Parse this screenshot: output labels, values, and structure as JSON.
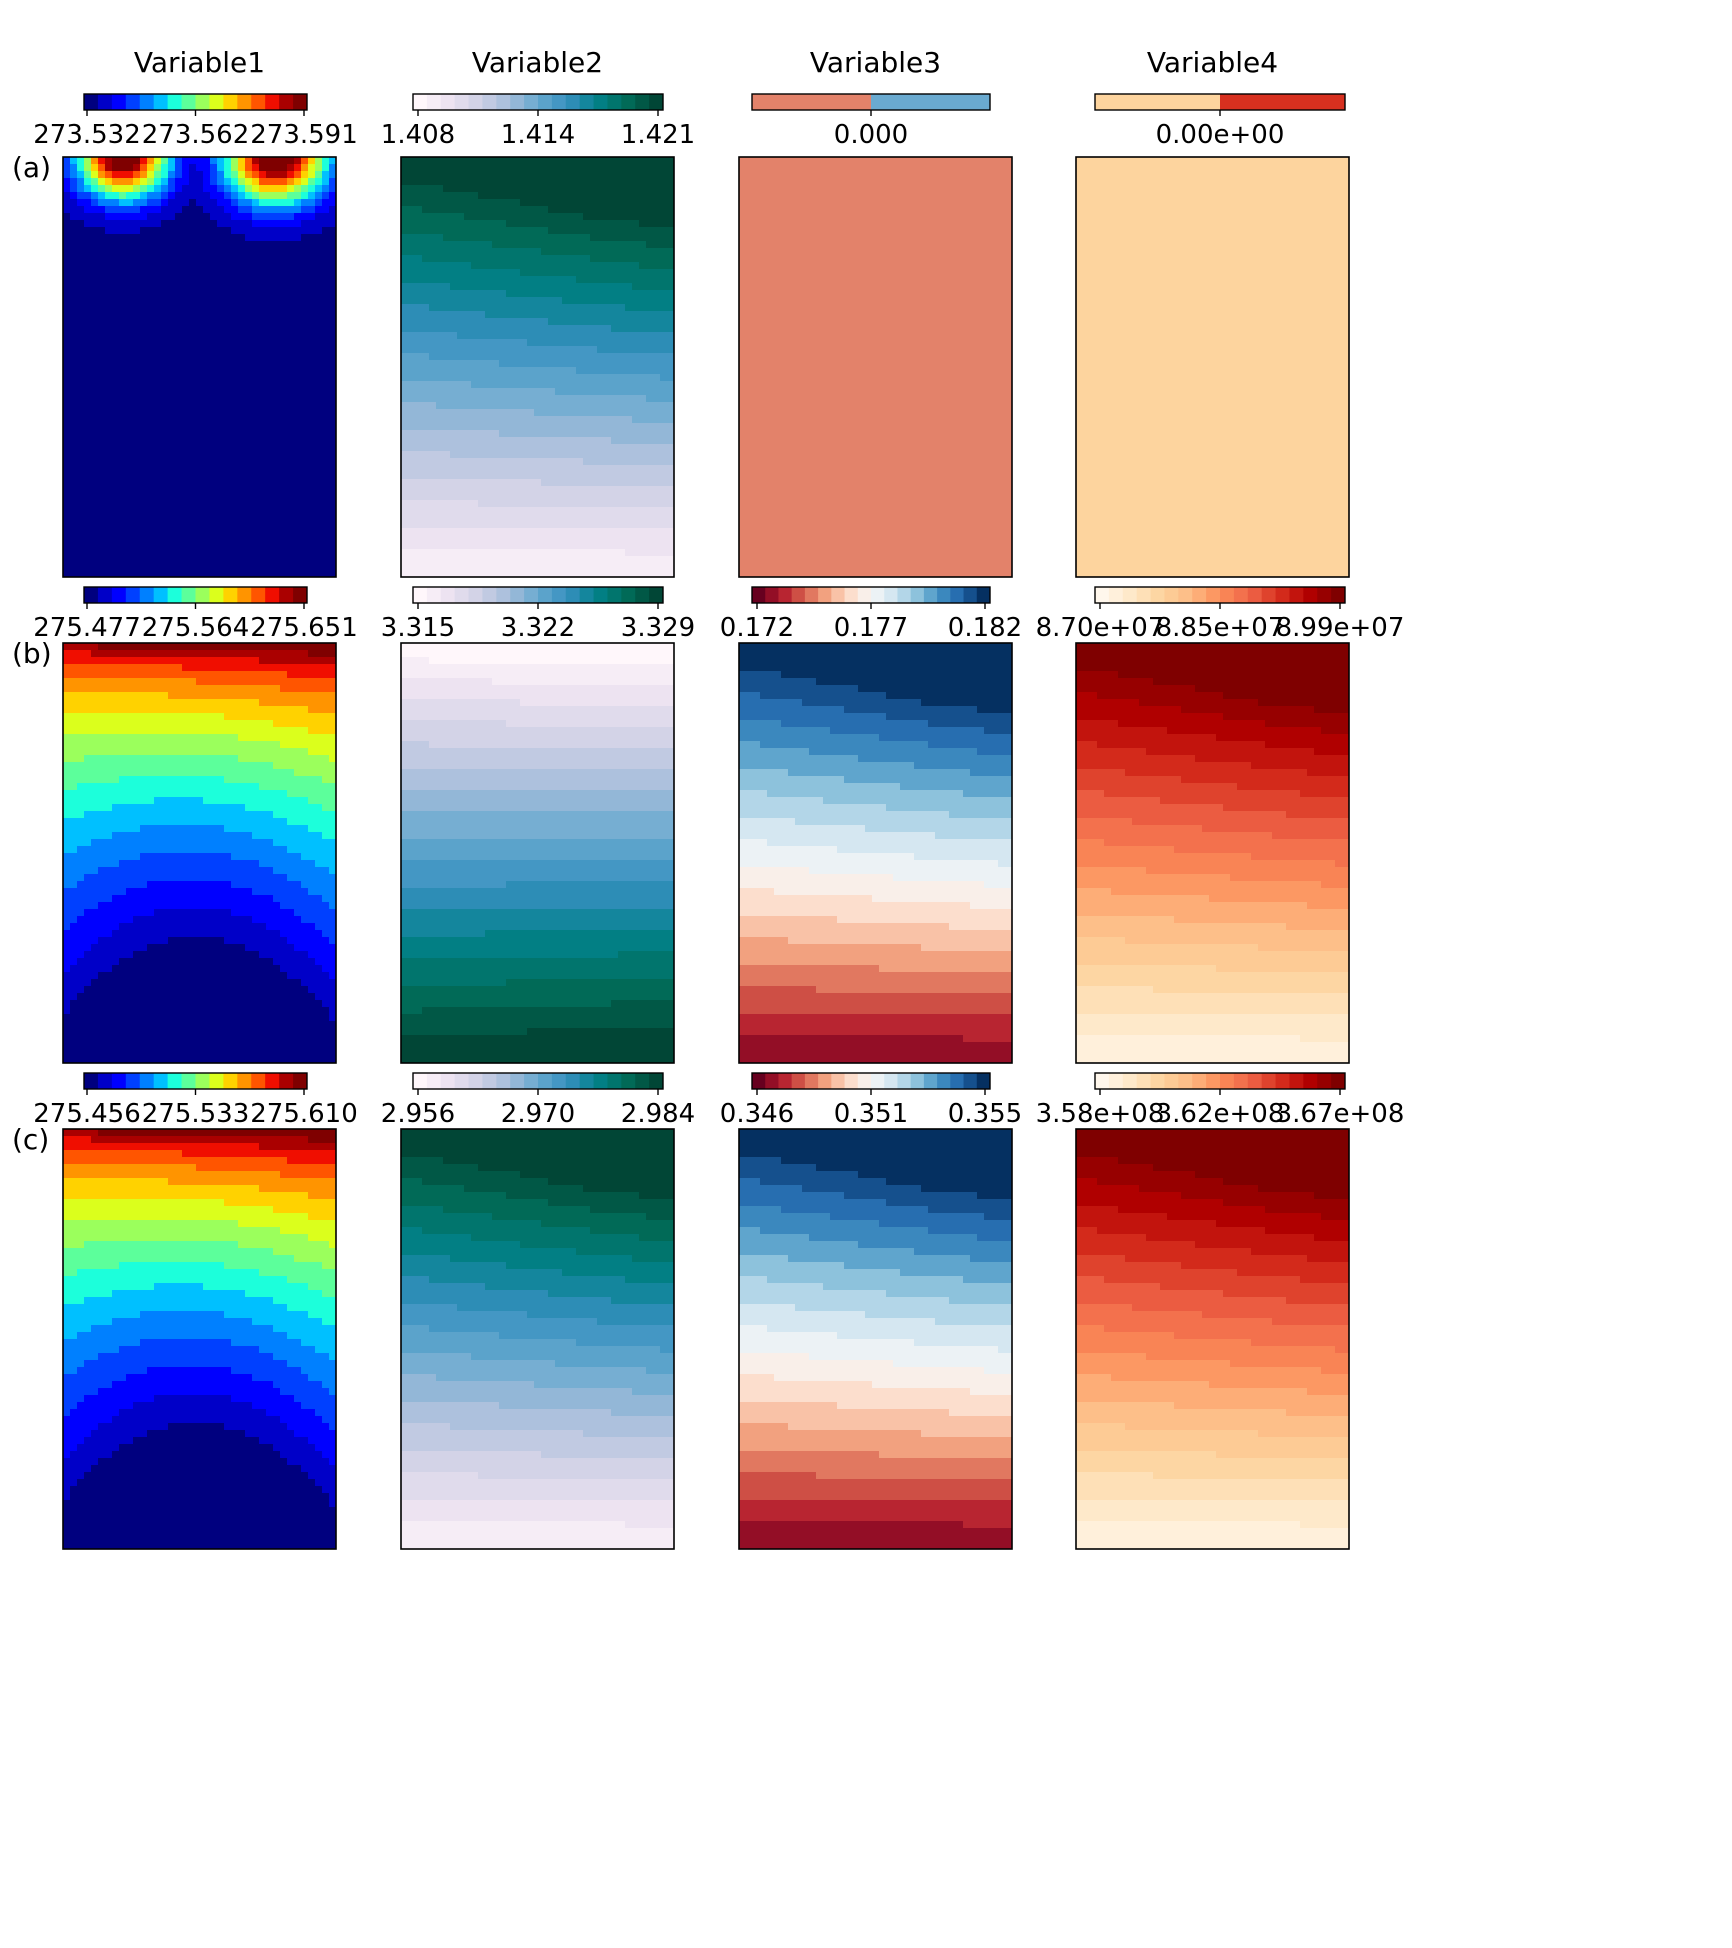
{
  "columns": [
    "Variable1",
    "Variable2",
    "Variable3",
    "Variable4"
  ],
  "rows": [
    "(a)",
    "(b)",
    "(c)"
  ],
  "colormaps": {
    "jet": [
      "#00007f",
      "#0000c8",
      "#0000ff",
      "#0040ff",
      "#0080ff",
      "#00c0ff",
      "#1cffdb",
      "#5cff9b",
      "#9bff5c",
      "#dbff1c",
      "#ffd200",
      "#ff9400",
      "#ff5500",
      "#f00e00",
      "#aa0000",
      "#7f0000"
    ],
    "PuBuGn": [
      "#fff7fb",
      "#ece2f0",
      "#d0d1e6",
      "#a6bddb",
      "#67a9cf",
      "#3690c0",
      "#02818a",
      "#016c59",
      "#014636"
    ],
    "RdBu": [
      "#67001f",
      "#b2182b",
      "#d6604d",
      "#f4a582",
      "#fddbc7",
      "#f7f7f7",
      "#d1e5f0",
      "#92c5de",
      "#4393c3",
      "#2166ac",
      "#053061"
    ],
    "OrRd": [
      "#fff7ec",
      "#fee8c8",
      "#fdd49e",
      "#fdbb84",
      "#fc8d59",
      "#ef6548",
      "#d7301f",
      "#b30000",
      "#7f0000"
    ]
  },
  "chart_data": [
    {
      "type": "heatmap",
      "panel": "(a)",
      "variable": "Variable1",
      "colormap": "jet",
      "vmin": 273.532,
      "vmax": 273.591,
      "ticks": [
        "273.532",
        "273.562",
        "273.591"
      ],
      "levels": 16,
      "pattern": "double_peak_top",
      "constant": false
    },
    {
      "type": "heatmap",
      "panel": "(a)",
      "variable": "Variable2",
      "colormap": "PuBuGn",
      "vmin": 1.408,
      "vmax": 1.421,
      "ticks": [
        "1.408",
        "1.414",
        "1.421"
      ],
      "levels": 18,
      "pattern": "increase_to_top_right",
      "constant": false
    },
    {
      "type": "heatmap",
      "panel": "(a)",
      "variable": "Variable3",
      "colormap": "RdBu",
      "vmin": 0.0,
      "vmax": 0.0,
      "ticks": [
        "0.000"
      ],
      "levels": 2,
      "pattern": "uniform",
      "constant": true,
      "field_color": "#e3826a",
      "bar_colors": [
        "#e3826a",
        "#6aaad0"
      ]
    },
    {
      "type": "heatmap",
      "panel": "(a)",
      "variable": "Variable4",
      "colormap": "OrRd",
      "vmin": 0.0,
      "vmax": 0.0,
      "ticks": [
        "0.00e+00"
      ],
      "levels": 2,
      "pattern": "uniform",
      "constant": true,
      "field_color": "#fdd49e",
      "bar_colors": [
        "#fdd49e",
        "#d7301f"
      ]
    },
    {
      "type": "heatmap",
      "panel": "(b)",
      "variable": "Variable1",
      "colormap": "jet",
      "vmin": 275.477,
      "vmax": 275.651,
      "ticks": [
        "275.477",
        "275.564",
        "275.651"
      ],
      "levels": 16,
      "pattern": "increase_to_top",
      "constant": false
    },
    {
      "type": "heatmap",
      "panel": "(b)",
      "variable": "Variable2",
      "colormap": "PuBuGn",
      "vmin": 3.315,
      "vmax": 3.329,
      "ticks": [
        "3.315",
        "3.322",
        "3.329"
      ],
      "levels": 18,
      "pattern": "increase_to_bottom",
      "constant": false
    },
    {
      "type": "heatmap",
      "panel": "(b)",
      "variable": "Variable3",
      "colormap": "RdBu",
      "vmin": 0.172,
      "vmax": 0.182,
      "ticks": [
        "0.172",
        "0.177",
        "0.182"
      ],
      "levels": 18,
      "pattern": "increase_to_top_right",
      "constant": false
    },
    {
      "type": "heatmap",
      "panel": "(b)",
      "variable": "Variable4",
      "colormap": "OrRd",
      "vmin": 87000000.0,
      "vmax": 89900000.0,
      "ticks": [
        "8.70e+07",
        "8.85e+07",
        "8.99e+07"
      ],
      "levels": 18,
      "pattern": "increase_to_top_right",
      "constant": false
    },
    {
      "type": "heatmap",
      "panel": "(c)",
      "variable": "Variable1",
      "colormap": "jet",
      "vmin": 275.456,
      "vmax": 275.61,
      "ticks": [
        "275.456",
        "275.533",
        "275.610"
      ],
      "levels": 16,
      "pattern": "increase_to_top",
      "constant": false
    },
    {
      "type": "heatmap",
      "panel": "(c)",
      "variable": "Variable2",
      "colormap": "PuBuGn",
      "vmin": 2.956,
      "vmax": 2.984,
      "ticks": [
        "2.956",
        "2.970",
        "2.984"
      ],
      "levels": 18,
      "pattern": "increase_to_top_right",
      "constant": false
    },
    {
      "type": "heatmap",
      "panel": "(c)",
      "variable": "Variable3",
      "colormap": "RdBu",
      "vmin": 0.346,
      "vmax": 0.355,
      "ticks": [
        "0.346",
        "0.351",
        "0.355"
      ],
      "levels": 18,
      "pattern": "increase_to_top_right",
      "constant": false
    },
    {
      "type": "heatmap",
      "panel": "(c)",
      "variable": "Variable4",
      "colormap": "OrRd",
      "vmin": 358000000.0,
      "vmax": 367000000.0,
      "ticks": [
        "3.58e+08",
        "3.62e+08",
        "3.67e+08"
      ],
      "levels": 18,
      "pattern": "increase_to_top_right",
      "constant": false
    }
  ]
}
